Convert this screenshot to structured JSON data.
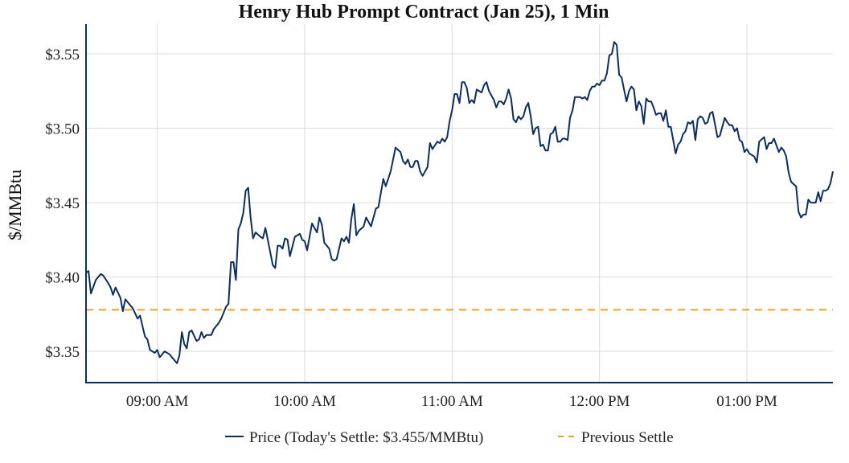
{
  "colors": {
    "price": "#0c2d5e",
    "previous_settle": "#f5a21b",
    "axis": "#0c2d5e",
    "grid": "#dcdcdc"
  },
  "chart_data": {
    "type": "line",
    "title": "Henry Hub Prompt Contract (Jan 25), 1 Min",
    "xlabel": "",
    "ylabel": "$/MMBtu",
    "x_units": "minutes since midnight",
    "xlim": [
      511,
      815
    ],
    "ylim": [
      3.329,
      3.57
    ],
    "grid": true,
    "legend_placement": "bottom-center",
    "x_ticks": [
      {
        "value": 540,
        "label": "09:00 AM"
      },
      {
        "value": 600,
        "label": "10:00 AM"
      },
      {
        "value": 660,
        "label": "11:00 AM"
      },
      {
        "value": 720,
        "label": "12:00 PM"
      },
      {
        "value": 780,
        "label": "01:00 PM"
      }
    ],
    "y_ticks": [
      {
        "value": 3.35,
        "label": "$3.35"
      },
      {
        "value": 3.4,
        "label": "$3.40"
      },
      {
        "value": 3.45,
        "label": "$3.45"
      },
      {
        "value": 3.5,
        "label": "$3.50"
      },
      {
        "value": 3.55,
        "label": "$3.55"
      }
    ],
    "series": [
      {
        "name": "Price (Today's Settle: $3.455/MMBtu)",
        "style": "solid",
        "points": [
          [
            511,
            3.403
          ],
          [
            512,
            3.404
          ],
          [
            513,
            3.389
          ],
          [
            515,
            3.398
          ],
          [
            517,
            3.402
          ],
          [
            518,
            3.401
          ],
          [
            520,
            3.396
          ],
          [
            521,
            3.393
          ],
          [
            522,
            3.388
          ],
          [
            523,
            3.393
          ],
          [
            525,
            3.386
          ],
          [
            526,
            3.377
          ],
          [
            527,
            3.385
          ],
          [
            529,
            3.381
          ],
          [
            530,
            3.379
          ],
          [
            532,
            3.372
          ],
          [
            533,
            3.374
          ],
          [
            535,
            3.36
          ],
          [
            536,
            3.358
          ],
          [
            537,
            3.351
          ],
          [
            539,
            3.349
          ],
          [
            540,
            3.351
          ],
          [
            541,
            3.346
          ],
          [
            543,
            3.35
          ],
          [
            545,
            3.348
          ],
          [
            547,
            3.344
          ],
          [
            548,
            3.342
          ],
          [
            549,
            3.347
          ],
          [
            550,
            3.363
          ],
          [
            551,
            3.355
          ],
          [
            552,
            3.352
          ],
          [
            553,
            3.363
          ],
          [
            554,
            3.364
          ],
          [
            556,
            3.357
          ],
          [
            557,
            3.358
          ],
          [
            558,
            3.363
          ],
          [
            559,
            3.359
          ],
          [
            560,
            3.361
          ],
          [
            562,
            3.361
          ],
          [
            563,
            3.365
          ],
          [
            565,
            3.369
          ],
          [
            566,
            3.372
          ],
          [
            568,
            3.38
          ],
          [
            569,
            3.382
          ],
          [
            570,
            3.41
          ],
          [
            571,
            3.41
          ],
          [
            572,
            3.398
          ],
          [
            573,
            3.432
          ],
          [
            574,
            3.436
          ],
          [
            575,
            3.443
          ],
          [
            576,
            3.458
          ],
          [
            577,
            3.46
          ],
          [
            578,
            3.44
          ],
          [
            579,
            3.426
          ],
          [
            580,
            3.43
          ],
          [
            582,
            3.427
          ],
          [
            583,
            3.426
          ],
          [
            584,
            3.433
          ],
          [
            585,
            3.425
          ],
          [
            587,
            3.408
          ],
          [
            588,
            3.406
          ],
          [
            589,
            3.421
          ],
          [
            590,
            3.421
          ],
          [
            591,
            3.419
          ],
          [
            592,
            3.426
          ],
          [
            593,
            3.425
          ],
          [
            594,
            3.414
          ],
          [
            596,
            3.427
          ],
          [
            598,
            3.429
          ],
          [
            599,
            3.425
          ],
          [
            600,
            3.424
          ],
          [
            601,
            3.418
          ],
          [
            603,
            3.436
          ],
          [
            605,
            3.43
          ],
          [
            606,
            3.44
          ],
          [
            607,
            3.435
          ],
          [
            608,
            3.423
          ],
          [
            609,
            3.421
          ],
          [
            610,
            3.419
          ],
          [
            611,
            3.412
          ],
          [
            612,
            3.411
          ],
          [
            613,
            3.412
          ],
          [
            615,
            3.426
          ],
          [
            616,
            3.424
          ],
          [
            617,
            3.427
          ],
          [
            618,
            3.423
          ],
          [
            619,
            3.439
          ],
          [
            620,
            3.449
          ],
          [
            621,
            3.428
          ],
          [
            622,
            3.431
          ],
          [
            624,
            3.434
          ],
          [
            625,
            3.44
          ],
          [
            626,
            3.437
          ],
          [
            627,
            3.434
          ],
          [
            629,
            3.446
          ],
          [
            630,
            3.447
          ],
          [
            632,
            3.466
          ],
          [
            633,
            3.461
          ],
          [
            635,
            3.471
          ],
          [
            637,
            3.487
          ],
          [
            639,
            3.484
          ],
          [
            640,
            3.478
          ],
          [
            641,
            3.476
          ],
          [
            642,
            3.479
          ],
          [
            643,
            3.474
          ],
          [
            644,
            3.474
          ],
          [
            645,
            3.478
          ],
          [
            646,
            3.478
          ],
          [
            647,
            3.471
          ],
          [
            648,
            3.468
          ],
          [
            650,
            3.474
          ],
          [
            651,
            3.49
          ],
          [
            652,
            3.486
          ],
          [
            654,
            3.491
          ],
          [
            655,
            3.49
          ],
          [
            656,
            3.493
          ],
          [
            657,
            3.491
          ],
          [
            658,
            3.494
          ],
          [
            659,
            3.505
          ],
          [
            660,
            3.512
          ],
          [
            661,
            3.523
          ],
          [
            662,
            3.523
          ],
          [
            663,
            3.517
          ],
          [
            664,
            3.531
          ],
          [
            665,
            3.531
          ],
          [
            666,
            3.527
          ],
          [
            667,
            3.517
          ],
          [
            668,
            3.519
          ],
          [
            669,
            3.517
          ],
          [
            670,
            3.526
          ],
          [
            672,
            3.524
          ],
          [
            673,
            3.529
          ],
          [
            674,
            3.531
          ],
          [
            675,
            3.525
          ],
          [
            677,
            3.519
          ],
          [
            678,
            3.514
          ],
          [
            679,
            3.518
          ],
          [
            680,
            3.518
          ],
          [
            681,
            3.516
          ],
          [
            682,
            3.52
          ],
          [
            683,
            3.526
          ],
          [
            684,
            3.52
          ],
          [
            685,
            3.506
          ],
          [
            686,
            3.504
          ],
          [
            687,
            3.508
          ],
          [
            688,
            3.506
          ],
          [
            689,
            3.508
          ],
          [
            690,
            3.514
          ],
          [
            691,
            3.517
          ],
          [
            692,
            3.508
          ],
          [
            693,
            3.496
          ],
          [
            694,
            3.5
          ],
          [
            695,
            3.501
          ],
          [
            696,
            3.488
          ],
          [
            697,
            3.489
          ],
          [
            698,
            3.485
          ],
          [
            699,
            3.485
          ],
          [
            700,
            3.496
          ],
          [
            701,
            3.497
          ],
          [
            702,
            3.501
          ],
          [
            703,
            3.491
          ],
          [
            704,
            3.491
          ],
          [
            705,
            3.493
          ],
          [
            706,
            3.493
          ],
          [
            707,
            3.492
          ],
          [
            708,
            3.507
          ],
          [
            709,
            3.512
          ],
          [
            710,
            3.521
          ],
          [
            712,
            3.521
          ],
          [
            713,
            3.52
          ],
          [
            714,
            3.521
          ],
          [
            715,
            3.519
          ],
          [
            716,
            3.525
          ],
          [
            717,
            3.528
          ],
          [
            718,
            3.528
          ],
          [
            719,
            3.53
          ],
          [
            720,
            3.529
          ],
          [
            721,
            3.532
          ],
          [
            722,
            3.532
          ],
          [
            723,
            3.537
          ],
          [
            724,
            3.549
          ],
          [
            725,
            3.55
          ],
          [
            726,
            3.558
          ],
          [
            727,
            3.556
          ],
          [
            728,
            3.536
          ],
          [
            729,
            3.534
          ],
          [
            730,
            3.526
          ],
          [
            731,
            3.518
          ],
          [
            732,
            3.525
          ],
          [
            733,
            3.528
          ],
          [
            734,
            3.526
          ],
          [
            735,
            3.512
          ],
          [
            736,
            3.518
          ],
          [
            737,
            3.515
          ],
          [
            738,
            3.503
          ],
          [
            739,
            3.52
          ],
          [
            740,
            3.518
          ],
          [
            741,
            3.518
          ],
          [
            742,
            3.514
          ],
          [
            743,
            3.509
          ],
          [
            744,
            3.51
          ],
          [
            745,
            3.51
          ],
          [
            746,
            3.505
          ],
          [
            747,
            3.512
          ],
          [
            748,
            3.501
          ],
          [
            749,
            3.501
          ],
          [
            751,
            3.483
          ],
          [
            752,
            3.489
          ],
          [
            753,
            3.491
          ],
          [
            754,
            3.496
          ],
          [
            755,
            3.498
          ],
          [
            756,
            3.504
          ],
          [
            757,
            3.503
          ],
          [
            758,
            3.505
          ],
          [
            759,
            3.492
          ],
          [
            760,
            3.506
          ],
          [
            761,
            3.508
          ],
          [
            762,
            3.507
          ],
          [
            763,
            3.503
          ],
          [
            764,
            3.504
          ],
          [
            765,
            3.51
          ],
          [
            766,
            3.511
          ],
          [
            768,
            3.494
          ],
          [
            769,
            3.495
          ],
          [
            771,
            3.507
          ],
          [
            772,
            3.504
          ],
          [
            773,
            3.502
          ],
          [
            774,
            3.502
          ],
          [
            775,
            3.498
          ],
          [
            776,
            3.5
          ],
          [
            777,
            3.492
          ],
          [
            778,
            3.491
          ],
          [
            779,
            3.484
          ],
          [
            780,
            3.486
          ],
          [
            781,
            3.483
          ],
          [
            783,
            3.481
          ],
          [
            784,
            3.477
          ],
          [
            785,
            3.491
          ],
          [
            787,
            3.494
          ],
          [
            788,
            3.486
          ],
          [
            789,
            3.49
          ],
          [
            790,
            3.49
          ],
          [
            791,
            3.493
          ],
          [
            793,
            3.484
          ],
          [
            794,
            3.487
          ],
          [
            795,
            3.485
          ],
          [
            796,
            3.481
          ],
          [
            797,
            3.47
          ],
          [
            798,
            3.464
          ],
          [
            800,
            3.461
          ],
          [
            801,
            3.444
          ],
          [
            802,
            3.44
          ],
          [
            803,
            3.442
          ],
          [
            804,
            3.442
          ],
          [
            805,
            3.452
          ],
          [
            806,
            3.45
          ],
          [
            808,
            3.45
          ],
          [
            809,
            3.457
          ],
          [
            810,
            3.451
          ],
          [
            811,
            3.458
          ],
          [
            812,
            3.458
          ],
          [
            813,
            3.459
          ],
          [
            814,
            3.463
          ],
          [
            815,
            3.471
          ]
        ]
      },
      {
        "name": "Previous Settle",
        "style": "dashed",
        "value": 3.378
      }
    ]
  }
}
